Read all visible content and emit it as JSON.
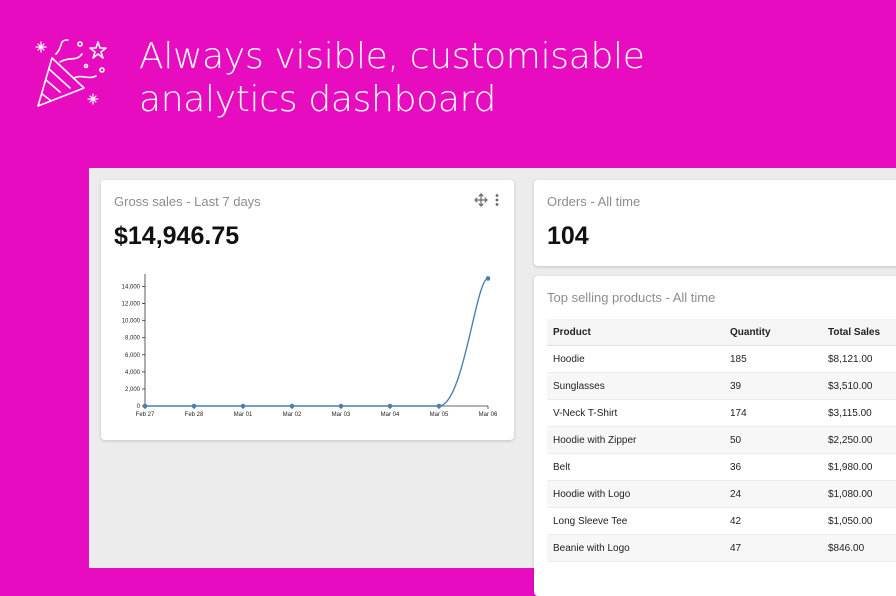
{
  "headline": {
    "line1": "Always visible, customisable",
    "line2": "analytics dashboard"
  },
  "gross_sales": {
    "title": "Gross sales - Last 7 days",
    "value": "$14,946.75"
  },
  "orders": {
    "title": "Orders - All time",
    "value": "104"
  },
  "top_products": {
    "title": "Top selling products - All time",
    "columns": [
      "Product",
      "Quantity",
      "Total Sales"
    ],
    "rows": [
      [
        "Hoodie",
        "185",
        "$8,121.00"
      ],
      [
        "Sunglasses",
        "39",
        "$3,510.00"
      ],
      [
        "V-Neck T-Shirt",
        "174",
        "$3,115.00"
      ],
      [
        "Hoodie with Zipper",
        "50",
        "$2,250.00"
      ],
      [
        "Belt",
        "36",
        "$1,980.00"
      ],
      [
        "Hoodie with Logo",
        "24",
        "$1,080.00"
      ],
      [
        "Long Sleeve Tee",
        "42",
        "$1,050.00"
      ],
      [
        "Beanie with Logo",
        "47",
        "$846.00"
      ]
    ]
  },
  "icons": {
    "party": "party-popper-icon",
    "move": "move-arrows-icon",
    "menu": "vertical-ellipsis-icon"
  },
  "colors": {
    "background": "#e80cc0",
    "line": "#4a7fb5"
  },
  "chart_data": {
    "type": "line",
    "categories": [
      "Feb 27",
      "Feb 28",
      "Mar 01",
      "Mar 02",
      "Mar 03",
      "Mar 04",
      "Mar 05",
      "Mar 06"
    ],
    "series": [
      {
        "values": [
          0,
          0,
          0,
          0,
          0,
          0,
          0,
          14946.75
        ]
      }
    ],
    "ylim": [
      0,
      15000
    ],
    "yticks": [
      0,
      2000,
      4000,
      6000,
      8000,
      10000,
      12000,
      14000
    ],
    "ytick_labels": [
      "0",
      "2,000",
      "4,000",
      "6,000",
      "8,000",
      "10,000",
      "12,000",
      "14,000"
    ],
    "grid": false
  }
}
